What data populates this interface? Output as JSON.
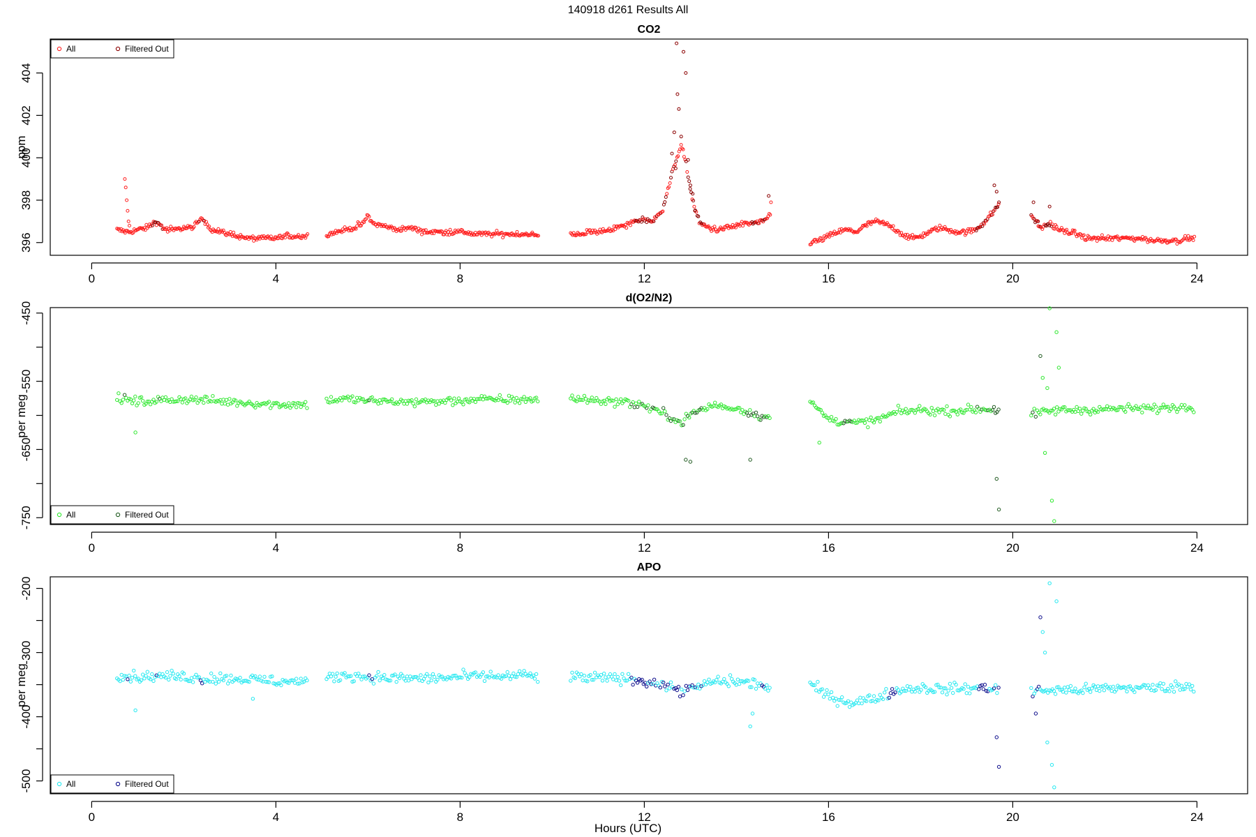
{
  "figure": {
    "suptitle": "140918   d261   Results All",
    "xlabel": "Hours (UTC)"
  },
  "chart_data": [
    {
      "type": "scatter",
      "title": "CO2",
      "ylabel": "ppm",
      "xlim": [
        -0.9,
        25.1
      ],
      "ylim": [
        395.4,
        405.6
      ],
      "xticks": [
        0,
        4,
        8,
        12,
        16,
        20,
        24
      ],
      "yticks": [
        396,
        398,
        400,
        402,
        404
      ],
      "legend_position": "top-left",
      "legend": [
        "All",
        "Filtered Out"
      ],
      "colors": {
        "all": "#ff2020",
        "filtered": "#8b0000"
      },
      "segments": [
        {
          "x": [
            0.55,
            0.8,
            1.0,
            1.2,
            1.4,
            1.6,
            1.8,
            2.0,
            2.2,
            2.4,
            2.6,
            2.8,
            3.0,
            3.2,
            3.4,
            3.6,
            3.8,
            4.0,
            4.2,
            4.4,
            4.6,
            4.7
          ],
          "y": [
            396.6,
            396.5,
            396.6,
            396.7,
            397.0,
            396.6,
            396.6,
            396.7,
            396.7,
            397.2,
            396.6,
            396.5,
            396.4,
            396.3,
            396.2,
            396.2,
            396.2,
            396.2,
            396.3,
            396.3,
            396.3,
            396.3
          ]
        },
        {
          "x": [
            5.1,
            5.3,
            5.5,
            5.7,
            5.9,
            6.0,
            6.1,
            6.3,
            6.5,
            6.7,
            6.9,
            7.1,
            7.3,
            7.5,
            7.7,
            7.9,
            8.1,
            8.3,
            8.5,
            8.7,
            8.9,
            9.1,
            9.3,
            9.5,
            9.7
          ],
          "y": [
            396.4,
            396.5,
            396.6,
            396.7,
            396.9,
            397.3,
            396.9,
            396.8,
            396.7,
            396.6,
            396.7,
            396.6,
            396.5,
            396.5,
            396.5,
            396.5,
            396.5,
            396.4,
            396.4,
            396.4,
            396.4,
            396.4,
            396.4,
            396.4,
            396.3
          ]
        },
        {
          "x": [
            10.4,
            10.6,
            10.8,
            11.0,
            11.2,
            11.4,
            11.6,
            11.8,
            12.0,
            12.2,
            12.4,
            12.5,
            12.6,
            12.7,
            12.8,
            12.9,
            13.0,
            13.1,
            13.2,
            13.4,
            13.6,
            13.8,
            14.0,
            14.2,
            14.4,
            14.6,
            14.75
          ],
          "y": [
            396.4,
            396.4,
            396.5,
            396.5,
            396.6,
            396.7,
            396.8,
            397.0,
            397.1,
            397.0,
            397.6,
            398.4,
            399.2,
            400.0,
            400.6,
            399.8,
            398.5,
            397.6,
            396.9,
            396.7,
            396.6,
            396.7,
            396.8,
            396.9,
            396.9,
            397.0,
            397.4
          ]
        },
        {
          "x": [
            15.6,
            15.8,
            16.0,
            16.2,
            16.4,
            16.6,
            16.8,
            17.0,
            17.2,
            17.4,
            17.6,
            17.8,
            18.0,
            18.2,
            18.4,
            18.6,
            18.8,
            19.0,
            19.2,
            19.4,
            19.6,
            19.7
          ],
          "y": [
            396.0,
            396.1,
            396.3,
            396.5,
            396.6,
            396.5,
            396.8,
            397.0,
            396.9,
            396.7,
            396.4,
            396.2,
            396.3,
            396.5,
            396.7,
            396.6,
            396.5,
            396.5,
            396.6,
            397.0,
            397.5,
            397.8
          ]
        },
        {
          "x": [
            20.4,
            20.6,
            20.8,
            21.0,
            21.2,
            21.4,
            21.6,
            21.8,
            22.0,
            22.2,
            22.4,
            22.6,
            22.8,
            23.0,
            23.2,
            23.4,
            23.6,
            23.8,
            23.95
          ],
          "y": [
            397.3,
            396.7,
            396.9,
            396.6,
            396.5,
            396.4,
            396.2,
            396.2,
            396.2,
            396.2,
            396.2,
            396.2,
            396.2,
            396.1,
            396.1,
            396.1,
            396.1,
            396.2,
            396.2
          ]
        }
      ],
      "noise": 0.12,
      "outliers": {
        "x": [
          0.72,
          0.74,
          0.76,
          0.78,
          0.8,
          0.82,
          12.7,
          12.72,
          12.75,
          12.8,
          12.85,
          12.9,
          12.95,
          13.0,
          12.65,
          12.6,
          12.68,
          13.05,
          13.1,
          14.7,
          14.75,
          19.6,
          19.65,
          19.7,
          20.45,
          20.55,
          20.8
        ],
        "y": [
          399.0,
          398.6,
          398.0,
          397.5,
          397.0,
          396.8,
          405.4,
          403.0,
          402.3,
          401.0,
          405.0,
          404.0,
          399.9,
          398.7,
          401.2,
          400.2,
          399.5,
          398.3,
          397.5,
          398.2,
          397.9,
          398.7,
          398.4,
          397.9,
          397.9,
          397.0,
          397.7
        ]
      },
      "filtered_ranges": [
        [
          1.3,
          1.55
        ],
        [
          2.3,
          2.45
        ],
        [
          11.8,
          13.3
        ],
        [
          14.3,
          14.7
        ],
        [
          19.2,
          19.7
        ],
        [
          20.4,
          20.9
        ]
      ]
    },
    {
      "type": "scatter",
      "title": "d(O2/N2)",
      "ylabel": "per meg",
      "xlim": [
        -0.9,
        25.1
      ],
      "ylim": [
        -760,
        -442
      ],
      "xticks": [
        0,
        4,
        8,
        12,
        16,
        20,
        24
      ],
      "yticks": [
        -450,
        -550,
        -650,
        -750
      ],
      "legend_position": "bottom-left",
      "legend": [
        "All",
        "Filtered Out"
      ],
      "colors": {
        "all": "#2ee82e",
        "filtered": "#1f5a1f"
      },
      "segments": [
        {
          "x": [
            0.55,
            1.0,
            1.5,
            2.0,
            2.5,
            3.0,
            3.5,
            4.0,
            4.5,
            4.7
          ],
          "y": [
            -575,
            -580,
            -578,
            -576,
            -578,
            -580,
            -582,
            -584,
            -584,
            -584
          ]
        },
        {
          "x": [
            5.1,
            5.5,
            6.0,
            6.5,
            7.0,
            7.5,
            8.0,
            8.5,
            9.0,
            9.5,
            9.7
          ],
          "y": [
            -578,
            -576,
            -578,
            -580,
            -580,
            -580,
            -578,
            -577,
            -577,
            -576,
            -578
          ]
        },
        {
          "x": [
            10.4,
            11.0,
            11.5,
            12.0,
            12.5,
            12.8,
            13.0,
            13.5,
            14.0,
            14.5,
            14.75
          ],
          "y": [
            -575,
            -578,
            -580,
            -585,
            -600,
            -610,
            -598,
            -585,
            -590,
            -600,
            -605
          ]
        },
        {
          "x": [
            15.6,
            16.0,
            16.5,
            17.0,
            17.5,
            18.0,
            18.5,
            19.0,
            19.5,
            19.7
          ],
          "y": [
            -580,
            -605,
            -612,
            -608,
            -595,
            -592,
            -594,
            -592,
            -590,
            -594
          ]
        },
        {
          "x": [
            20.4,
            21.0,
            21.5,
            22.0,
            22.5,
            23.0,
            23.5,
            23.95
          ],
          "y": [
            -598,
            -592,
            -592,
            -591,
            -590,
            -590,
            -588,
            -588
          ]
        }
      ],
      "noise": 6,
      "outliers": {
        "x": [
          0.95,
          12.9,
          13.0,
          14.3,
          15.8,
          19.65,
          19.7,
          20.6,
          20.65,
          20.7,
          20.8,
          20.85,
          20.9,
          20.95,
          21.0,
          20.75
        ],
        "y": [
          -625,
          -665,
          -668,
          -665,
          -640,
          -693,
          -738,
          -513,
          -545,
          -655,
          -443,
          -725,
          -755,
          -478,
          -530,
          -560
        ]
      },
      "filtered_ranges": [
        [
          0.7,
          0.8
        ],
        [
          1.4,
          1.5
        ],
        [
          6.0,
          6.1
        ],
        [
          11.7,
          13.3
        ],
        [
          14.2,
          14.7
        ],
        [
          16.3,
          16.5
        ],
        [
          19.2,
          19.7
        ],
        [
          20.4,
          20.6
        ]
      ]
    },
    {
      "type": "scatter",
      "title": "APO",
      "ylabel": "per meg",
      "xlim": [
        -0.9,
        25.1
      ],
      "ylim": [
        -520,
        -182
      ],
      "xticks": [
        0,
        4,
        8,
        12,
        16,
        20,
        24
      ],
      "yticks": [
        -200,
        -300,
        -400,
        -500
      ],
      "legend_position": "bottom-left",
      "legend": [
        "All",
        "Filtered Out"
      ],
      "colors": {
        "all": "#22e8f0",
        "filtered": "#0a0a8a"
      },
      "segments": [
        {
          "x": [
            0.55,
            1.0,
            1.5,
            2.0,
            2.5,
            3.0,
            3.5,
            4.0,
            4.5,
            4.7
          ],
          "y": [
            -335,
            -338,
            -336,
            -338,
            -340,
            -340,
            -342,
            -345,
            -345,
            -345
          ]
        },
        {
          "x": [
            5.1,
            5.5,
            6.0,
            6.5,
            7.0,
            7.5,
            8.0,
            8.5,
            9.0,
            9.5,
            9.7
          ],
          "y": [
            -340,
            -335,
            -338,
            -340,
            -340,
            -340,
            -338,
            -337,
            -337,
            -335,
            -340
          ]
        },
        {
          "x": [
            10.4,
            11.0,
            11.5,
            12.0,
            12.5,
            12.8,
            13.0,
            13.5,
            14.0,
            14.5,
            14.75
          ],
          "y": [
            -338,
            -340,
            -340,
            -345,
            -352,
            -360,
            -358,
            -345,
            -345,
            -350,
            -355
          ]
        },
        {
          "x": [
            15.6,
            16.0,
            16.5,
            17.0,
            17.5,
            18.0,
            18.5,
            19.0,
            19.5,
            19.7
          ],
          "y": [
            -350,
            -368,
            -378,
            -372,
            -358,
            -355,
            -357,
            -356,
            -355,
            -358
          ]
        },
        {
          "x": [
            20.4,
            21.0,
            21.5,
            22.0,
            22.5,
            23.0,
            23.5,
            23.95
          ],
          "y": [
            -360,
            -358,
            -358,
            -356,
            -355,
            -355,
            -353,
            -353
          ]
        }
      ],
      "noise": 8,
      "outliers": {
        "x": [
          0.95,
          3.5,
          14.3,
          14.35,
          19.65,
          19.7,
          20.6,
          20.65,
          20.7,
          20.75,
          20.8,
          20.85,
          20.9,
          20.95,
          20.5
        ],
        "y": [
          -390,
          -372,
          -415,
          -395,
          -432,
          -478,
          -245,
          -268,
          -300,
          -440,
          -192,
          -475,
          -510,
          -220,
          -395
        ]
      },
      "filtered_ranges": [
        [
          0.7,
          0.8
        ],
        [
          1.4,
          1.5
        ],
        [
          2.3,
          2.4
        ],
        [
          6.0,
          6.1
        ],
        [
          11.7,
          13.3
        ],
        [
          14.5,
          14.7
        ],
        [
          17.3,
          17.5
        ],
        [
          19.2,
          19.7
        ],
        [
          20.4,
          20.6
        ]
      ]
    }
  ]
}
